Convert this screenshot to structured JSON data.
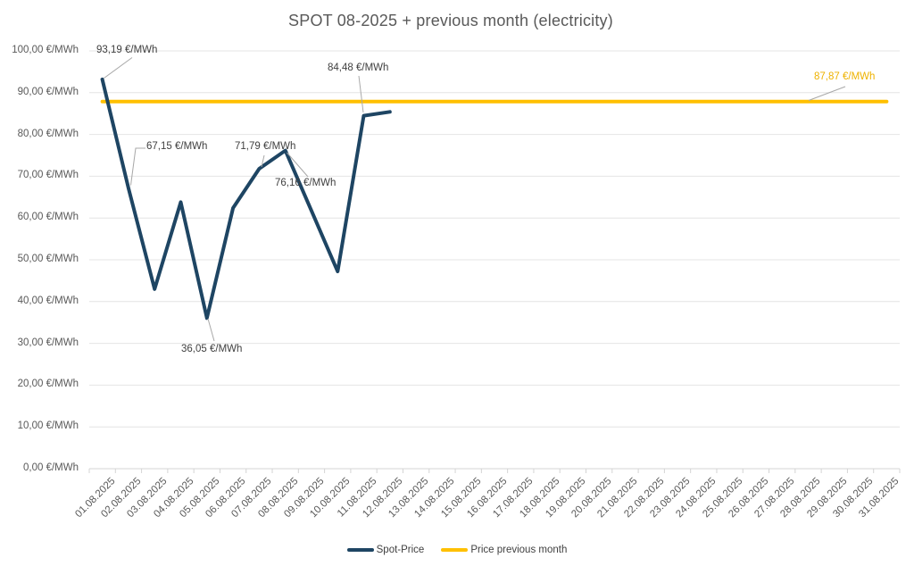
{
  "title": "SPOT 08-2025 + previous month (electricity)",
  "chart_data": {
    "type": "line",
    "title": "SPOT 08-2025 + previous month (electricity)",
    "x": [
      "01.08.2025",
      "02.08.2025",
      "03.08.2025",
      "04.08.2025",
      "05.08.2025",
      "06.08.2025",
      "07.08.2025",
      "08.08.2025",
      "09.08.2025",
      "10.08.2025",
      "11.08.2025",
      "12.08.2025",
      "13.08.2025",
      "14.08.2025",
      "15.08.2025",
      "16.08.2025",
      "17.08.2025",
      "18.08.2025",
      "19.08.2025",
      "20.08.2025",
      "21.08.2025",
      "22.08.2025",
      "23.08.2025",
      "24.08.2025",
      "25.08.2025",
      "26.08.2025",
      "27.08.2025",
      "28.08.2025",
      "29.08.2025",
      "30.08.2025",
      "31.08.2025"
    ],
    "series": [
      {
        "name": "Spot-Price",
        "color": "#1e4563",
        "values": [
          93.19,
          67.15,
          43.0,
          63.8,
          36.05,
          62.4,
          71.79,
          76.16,
          61.7,
          47.2,
          84.48,
          85.4
        ]
      },
      {
        "name": "Price previous month",
        "color": "#ffc000",
        "constant": 87.87,
        "span_full_axis": true
      }
    ],
    "ylim": [
      0,
      100
    ],
    "ytick_values": [
      100,
      90,
      80,
      70,
      60,
      50,
      40,
      30,
      20,
      10,
      0
    ],
    "ytick_labels": [
      "100,00 €/MWh",
      "90,00 €/MWh",
      "80,00 €/MWh",
      "70,00 €/MWh",
      "60,00 €/MWh",
      "50,00 €/MWh",
      "40,00 €/MWh",
      "30,00 €/MWh",
      "20,00 €/MWh",
      "10,00 €/MWh",
      "0,00 €/MWh"
    ],
    "grid": true,
    "legend_position": "bottom",
    "annotations": [
      {
        "text": "93,19 €/MWh",
        "series": "Spot-Price",
        "x": "01.08.2025",
        "value": 93.19,
        "color": "#404040"
      },
      {
        "text": "67,15 €/MWh",
        "series": "Spot-Price",
        "x": "02.08.2025",
        "value": 67.15,
        "color": "#404040"
      },
      {
        "text": "71,79 €/MWh",
        "series": "Spot-Price",
        "x": "07.08.2025",
        "value": 71.79,
        "color": "#404040"
      },
      {
        "text": "76,16 €/MWh",
        "series": "Spot-Price",
        "x": "08.08.2025",
        "value": 76.16,
        "color": "#404040"
      },
      {
        "text": "36,05 €/MWh",
        "series": "Spot-Price",
        "x": "05.08.2025",
        "value": 36.05,
        "color": "#404040"
      },
      {
        "text": "84,48 €/MWh",
        "series": "Spot-Price",
        "x": "11.08.2025",
        "value": 84.48,
        "color": "#404040"
      },
      {
        "text": "87,87 €/MWh",
        "series": "Price previous month",
        "value": 87.87,
        "color": "#eeb200"
      }
    ]
  },
  "legend": {
    "items": [
      {
        "label": "Spot-Price",
        "color": "#1e4563"
      },
      {
        "label": "Price previous month",
        "color": "#ffc000"
      }
    ]
  }
}
